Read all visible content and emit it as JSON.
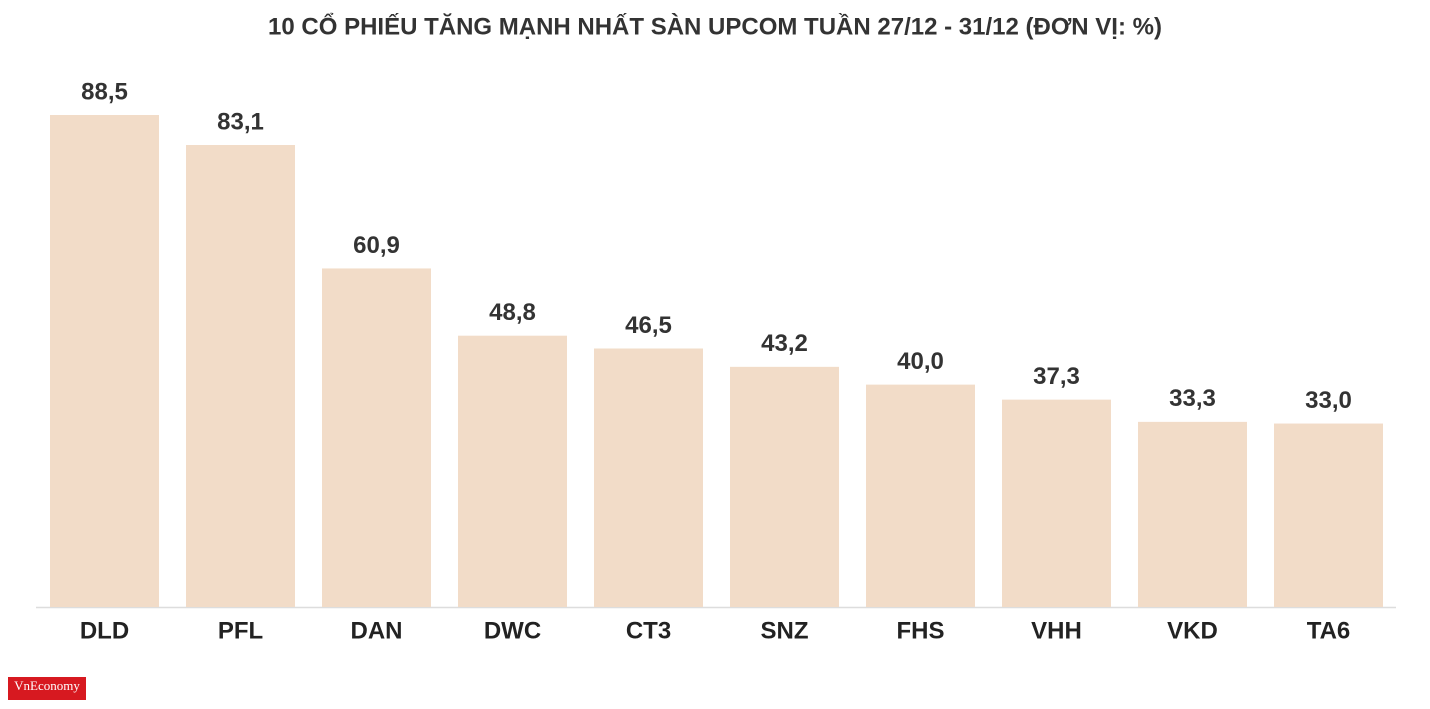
{
  "chart_data": {
    "type": "bar",
    "title": "10 CỔ PHIẾU TĂNG MẠNH NHẤT SÀN UPCOM TUẦN 27/12 - 31/12 (ĐƠN VỊ: %)",
    "categories": [
      "DLD",
      "PFL",
      "DAN",
      "DWC",
      "CT3",
      "SNZ",
      "FHS",
      "VHH",
      "VKD",
      "TA6"
    ],
    "values": [
      88.5,
      83.1,
      60.9,
      48.8,
      46.5,
      43.2,
      40.0,
      37.3,
      33.3,
      33.0
    ],
    "value_labels": [
      "88,5",
      "83,1",
      "60,9",
      "48,8",
      "46,5",
      "43,2",
      "40,0",
      "37,3",
      "33,3",
      "33,0"
    ],
    "color": "#f2dcc8",
    "source": "VnEconomy"
  }
}
